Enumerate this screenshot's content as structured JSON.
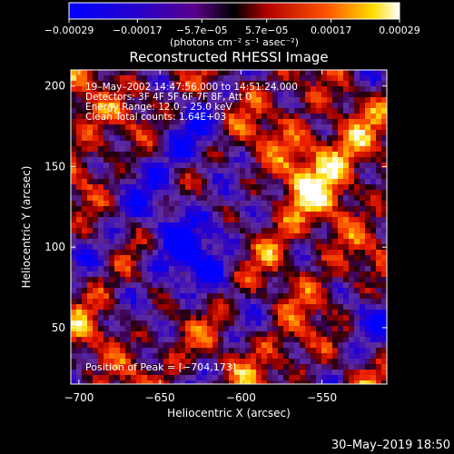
{
  "chart_data": {
    "type": "heatmap",
    "title": "Reconstructed RHESSI Image",
    "xlabel": "Heliocentric X (arcsec)",
    "ylabel": "Heliocentric Y (arcsec)",
    "xlim": [
      -705,
      -510
    ],
    "ylim": [
      15,
      210
    ],
    "x_ticks": [
      -700,
      -650,
      -600,
      -550
    ],
    "x_tick_labels": [
      "−700",
      "−650",
      "−600",
      "−550"
    ],
    "y_ticks": [
      50,
      100,
      150,
      200
    ],
    "y_tick_labels": [
      "50",
      "100",
      "150",
      "200"
    ],
    "colorbar": {
      "range": [
        -0.00029,
        0.00029
      ],
      "ticks": [
        -0.00029,
        -0.00017,
        -5.7e-05,
        5.7e-05,
        0.00017,
        0.00029
      ],
      "tick_labels": [
        "−0.00029",
        "−0.00017",
        "−5.7e−05",
        "5.7e−05",
        "0.00017",
        "0.00029"
      ],
      "unit_label": "(photons cm⁻² s⁻¹ asec⁻²)"
    },
    "info_lines": [
      "19–May–2002 14:47:56.000 to 14:51:24.000",
      "Detectors: 3F 4F 5F 6F 7F 8F, Att 0",
      "Energy Range: 12.0 – 25.0 keV",
      "Clean     Total counts: 1.64E+03"
    ],
    "peak_label": "Position of Peak = [−704,173]",
    "peak_position": [
      -704,
      173
    ]
  },
  "footer": {
    "timestamp": "30–May–2019 18:50"
  }
}
